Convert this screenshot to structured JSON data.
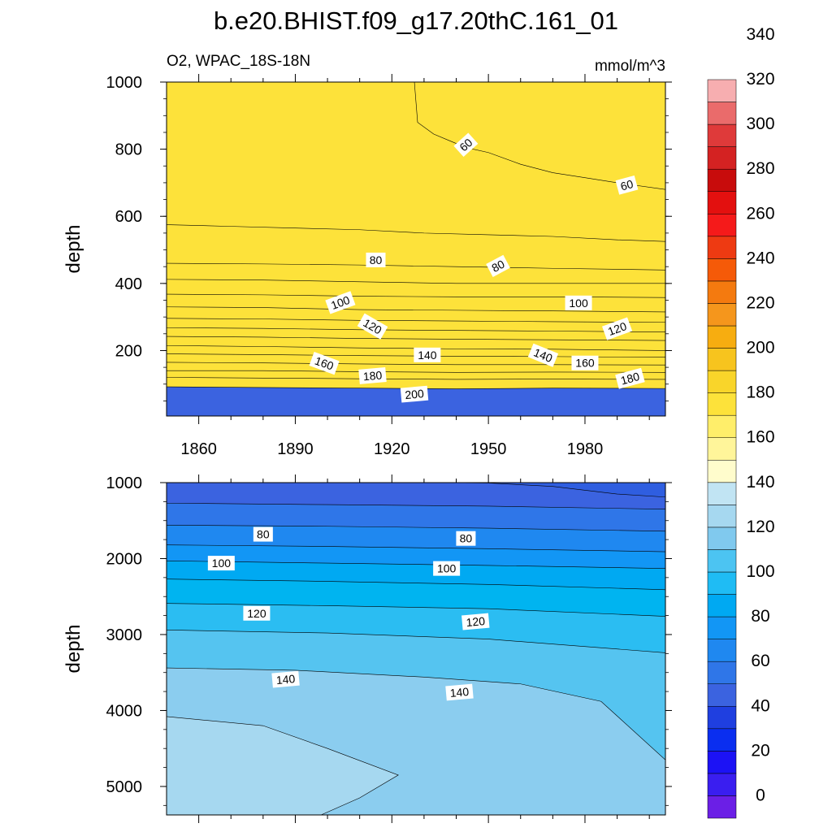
{
  "title": "b.e20.BHIST.f09_g17.20thC.161_01",
  "chart_data": {
    "type": "heatmap",
    "variable": "O2, WPAC_18S-18N",
    "units": "mmol/m^3",
    "colorbar": {
      "ticks": [
        0,
        20,
        40,
        60,
        80,
        100,
        120,
        140,
        160,
        180,
        200,
        220,
        240,
        260,
        280,
        300,
        320,
        340
      ],
      "colors": [
        "#6b1fe6",
        "#3a1ef0",
        "#1c12f5",
        "#0a2ef0",
        "#1f3fe0",
        "#3b63e0",
        "#2f76e8",
        "#1f88f0",
        "#1296f5",
        "#00a9f2",
        "#1fbcf4",
        "#4cc4f2",
        "#80c9ee",
        "#a6d8f0",
        "#c1e4f3",
        "#fffccc",
        "#fff59a",
        "#ffee6a",
        "#fde23a",
        "#f9d52a",
        "#f7c41e",
        "#f7ad10",
        "#f5961c",
        "#f47a0f",
        "#f55a08",
        "#ee3a12",
        "#f51a1a",
        "#e3100f",
        "#c80c0c",
        "#d42222",
        "#df3a3a",
        "#ea6b6b",
        "#f7aeb0"
      ]
    },
    "panels": [
      {
        "name": "upper",
        "xlabel": "",
        "ylabel": "depth",
        "xlim": [
          1850,
          2005
        ],
        "ylim": [
          1000,
          5
        ],
        "xticks": [
          1860,
          1890,
          1920,
          1950,
          1980
        ],
        "yticks": [
          200,
          400,
          600,
          800,
          1000
        ],
        "contour_levels": [
          {
            "value": 60,
            "color": "#3b63e0"
          },
          {
            "value": 70,
            "color": "#2f76e8"
          },
          {
            "value": 80,
            "color": "#1f88f0"
          },
          {
            "value": 90,
            "color": "#1296f5"
          },
          {
            "value": 100,
            "color": "#00a9f2"
          },
          {
            "value": 110,
            "color": "#00b4f0"
          },
          {
            "value": 120,
            "color": "#1fbcf4"
          },
          {
            "value": 130,
            "color": "#4cc4f2"
          },
          {
            "value": 140,
            "color": "#6cc6ef"
          },
          {
            "value": 150,
            "color": "#8bcdef"
          },
          {
            "value": 160,
            "color": "#b4dcf0"
          },
          {
            "value": 170,
            "color": "#d6ecf4"
          },
          {
            "value": 180,
            "color": "#fffccc"
          },
          {
            "value": 190,
            "color": "#fff18a"
          },
          {
            "value": 200,
            "color": "#fde23a"
          }
        ],
        "boundaries": [
          {
            "value": 60,
            "points": [
              [
                1927,
                1000
              ],
              [
                1928,
                880
              ],
              [
                1933,
                845
              ],
              [
                1938,
                825
              ],
              [
                1943,
                805
              ],
              [
                1950,
                790
              ],
              [
                1960,
                755
              ],
              [
                1970,
                730
              ],
              [
                1980,
                715
              ],
              [
                1990,
                700
              ],
              [
                2005,
                680
              ]
            ]
          },
          {
            "value": 70,
            "points": [
              [
                1850,
                575
              ],
              [
                1870,
                570
              ],
              [
                1890,
                565
              ],
              [
                1910,
                560
              ],
              [
                1930,
                550
              ],
              [
                1950,
                545
              ],
              [
                1970,
                540
              ],
              [
                1990,
                530
              ],
              [
                2005,
                525
              ]
            ]
          },
          {
            "value": 80,
            "points": [
              [
                1850,
                460
              ],
              [
                1880,
                458
              ],
              [
                1910,
                455
              ],
              [
                1940,
                450
              ],
              [
                1970,
                445
              ],
              [
                2005,
                440
              ]
            ]
          },
          {
            "value": 90,
            "points": [
              [
                1850,
                412
              ],
              [
                1880,
                410
              ],
              [
                1910,
                405
              ],
              [
                1940,
                400
              ],
              [
                1970,
                400
              ],
              [
                2005,
                400
              ]
            ]
          },
          {
            "value": 100,
            "points": [
              [
                1850,
                368
              ],
              [
                1880,
                366
              ],
              [
                1910,
                362
              ],
              [
                1940,
                360
              ],
              [
                1970,
                360
              ],
              [
                2005,
                358
              ]
            ]
          },
          {
            "value": 110,
            "points": [
              [
                1850,
                330
              ],
              [
                1880,
                328
              ],
              [
                1910,
                322
              ],
              [
                1940,
                320
              ],
              [
                1970,
                318
              ],
              [
                2005,
                315
              ]
            ]
          },
          {
            "value": 120,
            "points": [
              [
                1850,
                296
              ],
              [
                1880,
                294
              ],
              [
                1910,
                290
              ],
              [
                1940,
                288
              ],
              [
                1970,
                286
              ],
              [
                2005,
                284
              ]
            ]
          },
          {
            "value": 130,
            "points": [
              [
                1850,
                268
              ],
              [
                1880,
                266
              ],
              [
                1910,
                262
              ],
              [
                1940,
                260
              ],
              [
                1970,
                258
              ],
              [
                2005,
                255
              ]
            ]
          },
          {
            "value": 140,
            "points": [
              [
                1850,
                242
              ],
              [
                1880,
                240
              ],
              [
                1910,
                236
              ],
              [
                1940,
                234
              ],
              [
                1970,
                232
              ],
              [
                2005,
                230
              ]
            ]
          },
          {
            "value": 150,
            "points": [
              [
                1850,
                215
              ],
              [
                1880,
                212
              ],
              [
                1910,
                208
              ],
              [
                1940,
                205
              ],
              [
                1970,
                204
              ],
              [
                2005,
                200
              ]
            ]
          },
          {
            "value": 160,
            "points": [
              [
                1850,
                190
              ],
              [
                1880,
                188
              ],
              [
                1910,
                185
              ],
              [
                1940,
                183
              ],
              [
                1970,
                182
              ],
              [
                2005,
                180
              ]
            ]
          },
          {
            "value": 170,
            "points": [
              [
                1850,
                165
              ],
              [
                1880,
                163
              ],
              [
                1910,
                160
              ],
              [
                1940,
                158
              ],
              [
                1970,
                158
              ],
              [
                2005,
                157
              ]
            ]
          },
          {
            "value": 180,
            "points": [
              [
                1850,
                140
              ],
              [
                1880,
                140
              ],
              [
                1910,
                137
              ],
              [
                1940,
                135
              ],
              [
                1970,
                136
              ],
              [
                2005,
                135
              ]
            ]
          },
          {
            "value": 190,
            "points": [
              [
                1850,
                120
              ],
              [
                1880,
                118
              ],
              [
                1910,
                116
              ],
              [
                1940,
                114
              ],
              [
                1970,
                115
              ],
              [
                2005,
                114
              ]
            ]
          },
          {
            "value": 200,
            "points": [
              [
                1850,
                92
              ],
              [
                1880,
                90
              ],
              [
                1910,
                88
              ],
              [
                1940,
                86
              ],
              [
                1970,
                88
              ],
              [
                2005,
                87
              ]
            ]
          }
        ],
        "labels": [
          {
            "text": "200",
            "x": 1927,
            "y": 70,
            "angle": -5
          },
          {
            "text": "180",
            "x": 1914,
            "y": 125,
            "angle": -5
          },
          {
            "text": "180",
            "x": 1994,
            "y": 117,
            "angle": -15
          },
          {
            "text": "160",
            "x": 1899,
            "y": 162,
            "angle": 20
          },
          {
            "text": "160",
            "x": 1980,
            "y": 163,
            "angle": 0
          },
          {
            "text": "140",
            "x": 1931,
            "y": 187,
            "angle": 0
          },
          {
            "text": "140",
            "x": 1967,
            "y": 186,
            "angle": 22
          },
          {
            "text": "120",
            "x": 1914,
            "y": 272,
            "angle": 30
          },
          {
            "text": "120",
            "x": 1990,
            "y": 265,
            "angle": -20
          },
          {
            "text": "100",
            "x": 1904,
            "y": 343,
            "angle": -20
          },
          {
            "text": "100",
            "x": 1978,
            "y": 342,
            "angle": 0
          },
          {
            "text": "80",
            "x": 1915,
            "y": 470,
            "angle": 0
          },
          {
            "text": "80",
            "x": 1953,
            "y": 452,
            "angle": -28
          },
          {
            "text": "60",
            "x": 1943,
            "y": 813,
            "angle": -42
          },
          {
            "text": "60",
            "x": 1993,
            "y": 693,
            "angle": -15
          }
        ]
      },
      {
        "name": "lower",
        "xlabel": "",
        "ylabel": "depth",
        "xlim": [
          1850,
          2005
        ],
        "ylim": [
          1000,
          5375
        ],
        "yticks": [
          1000,
          2000,
          3000,
          4000,
          5000
        ],
        "contour_levels": [
          {
            "value": 50,
            "color": "#2f5ee0"
          },
          {
            "value": 60,
            "color": "#3b63e0"
          },
          {
            "value": 70,
            "color": "#2f76e8"
          },
          {
            "value": 80,
            "color": "#1f88f0"
          },
          {
            "value": 90,
            "color": "#1296f5"
          },
          {
            "value": 100,
            "color": "#00a9f2"
          },
          {
            "value": 110,
            "color": "#00b4f0"
          },
          {
            "value": 120,
            "color": "#2bbdf2"
          },
          {
            "value": 130,
            "color": "#55c4f0"
          },
          {
            "value": 140,
            "color": "#8bcdef"
          },
          {
            "value": 150,
            "color": "#a6d8f0"
          }
        ],
        "boundaries": [
          {
            "value": 60,
            "points": [
              [
                1935,
                1000
              ],
              [
                1950,
                1005
              ],
              [
                1970,
                1050
              ],
              [
                1990,
                1150
              ],
              [
                2005,
                1190
              ]
            ]
          },
          {
            "value": 70,
            "points": [
              [
                1850,
                1270
              ],
              [
                1900,
                1290
              ],
              [
                1950,
                1310
              ],
              [
                2005,
                1350
              ]
            ]
          },
          {
            "value": 80,
            "points": [
              [
                1850,
                1560
              ],
              [
                1900,
                1575
              ],
              [
                1950,
                1600
              ],
              [
                2005,
                1640
              ]
            ]
          },
          {
            "value": 90,
            "points": [
              [
                1850,
                1820
              ],
              [
                1900,
                1840
              ],
              [
                1950,
                1870
              ],
              [
                2005,
                1910
              ]
            ]
          },
          {
            "value": 100,
            "points": [
              [
                1850,
                2030
              ],
              [
                1900,
                2060
              ],
              [
                1950,
                2090
              ],
              [
                2005,
                2130
              ]
            ]
          },
          {
            "value": 110,
            "points": [
              [
                1850,
                2270
              ],
              [
                1900,
                2300
              ],
              [
                1950,
                2340
              ],
              [
                2005,
                2410
              ]
            ]
          },
          {
            "value": 120,
            "points": [
              [
                1850,
                2590
              ],
              [
                1900,
                2620
              ],
              [
                1950,
                2660
              ],
              [
                2005,
                2760
              ]
            ]
          },
          {
            "value": 130,
            "points": [
              [
                1850,
                2940
              ],
              [
                1900,
                2980
              ],
              [
                1950,
                3060
              ],
              [
                2005,
                3240
              ]
            ]
          },
          {
            "value": 140,
            "points": [
              [
                1850,
                3440
              ],
              [
                1890,
                3470
              ],
              [
                1930,
                3560
              ],
              [
                1960,
                3650
              ],
              [
                1985,
                3880
              ],
              [
                2005,
                4650
              ]
            ]
          },
          {
            "value": 150,
            "points": [
              [
                1850,
                4080
              ],
              [
                1880,
                4200
              ],
              [
                1900,
                4500
              ],
              [
                1922,
                4850
              ],
              [
                1910,
                5150
              ],
              [
                1898,
                5375
              ]
            ]
          }
        ],
        "labels": [
          {
            "text": "80",
            "x": 1880,
            "y": 1680,
            "angle": 0
          },
          {
            "text": "80",
            "x": 1943,
            "y": 1735,
            "angle": 0
          },
          {
            "text": "100",
            "x": 1867,
            "y": 2060,
            "angle": 0
          },
          {
            "text": "100",
            "x": 1937,
            "y": 2130,
            "angle": 0
          },
          {
            "text": "120",
            "x": 1878,
            "y": 2720,
            "angle": 0
          },
          {
            "text": "120",
            "x": 1946,
            "y": 2830,
            "angle": -5
          },
          {
            "text": "140",
            "x": 1887,
            "y": 3590,
            "angle": -5
          },
          {
            "text": "140",
            "x": 1941,
            "y": 3760,
            "angle": -5
          }
        ]
      }
    ]
  }
}
